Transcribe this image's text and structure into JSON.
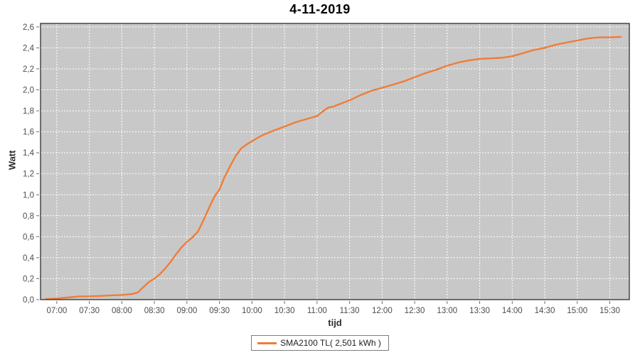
{
  "title": "4-11-2019",
  "axis": {
    "y_title": "Watt",
    "x_title": "tijd"
  },
  "legend": {
    "label": "SMA2100 TL( 2,501 kWh )",
    "line_color": "#EF7D38"
  },
  "colors": {
    "plot_background": "#C8C8C8",
    "gridline": "#FFFFFF",
    "series_line": "#EF7D38",
    "plot_border": "#2e2e2e",
    "tick": "#6b6b6b",
    "tick_label": "#4c4c4c",
    "page_background": "#FFFFFF"
  },
  "chart_data": {
    "type": "line",
    "title": "4-11-2019",
    "xlabel": "tijd",
    "ylabel": "Watt",
    "grid": true,
    "grid_style": "dashed-white",
    "legend_position": "bottom-center",
    "xlim_hours": [
      6.75,
      15.8
    ],
    "ylim": [
      0,
      2.633
    ],
    "x_ticks": [
      {
        "hour": 7.0,
        "label": "07:00"
      },
      {
        "hour": 7.5,
        "label": "07:30"
      },
      {
        "hour": 8.0,
        "label": "08:00"
      },
      {
        "hour": 8.5,
        "label": "08:30"
      },
      {
        "hour": 9.0,
        "label": "09:00"
      },
      {
        "hour": 9.5,
        "label": "09:30"
      },
      {
        "hour": 10.0,
        "label": "10:00"
      },
      {
        "hour": 10.5,
        "label": "10:30"
      },
      {
        "hour": 11.0,
        "label": "11:00"
      },
      {
        "hour": 11.5,
        "label": "11:30"
      },
      {
        "hour": 12.0,
        "label": "12:00"
      },
      {
        "hour": 12.5,
        "label": "12:30"
      },
      {
        "hour": 13.0,
        "label": "13:00"
      },
      {
        "hour": 13.5,
        "label": "13:30"
      },
      {
        "hour": 14.0,
        "label": "14:00"
      },
      {
        "hour": 14.5,
        "label": "14:30"
      },
      {
        "hour": 15.0,
        "label": "15:00"
      },
      {
        "hour": 15.5,
        "label": "15:30"
      }
    ],
    "y_ticks": [
      {
        "value": 0.0,
        "label": "0,0"
      },
      {
        "value": 0.2,
        "label": "0,2"
      },
      {
        "value": 0.4,
        "label": "0,4"
      },
      {
        "value": 0.6,
        "label": "0,6"
      },
      {
        "value": 0.8,
        "label": "0,8"
      },
      {
        "value": 1.0,
        "label": "1,0"
      },
      {
        "value": 1.2,
        "label": "1,2"
      },
      {
        "value": 1.4,
        "label": "1,4"
      },
      {
        "value": 1.6,
        "label": "1,6"
      },
      {
        "value": 1.8,
        "label": "1,8"
      },
      {
        "value": 2.0,
        "label": "2,0"
      },
      {
        "value": 2.2,
        "label": "2,2"
      },
      {
        "value": 2.4,
        "label": "2,4"
      },
      {
        "value": 2.6,
        "label": "2,6"
      }
    ],
    "series": [
      {
        "name": "SMA2100 TL( 2,501 kWh )",
        "color": "#EF7D38",
        "total_kwh_label": "2,501 kWh",
        "points": [
          [
            6.83,
            0.005
          ],
          [
            7.0,
            0.01
          ],
          [
            7.17,
            0.02
          ],
          [
            7.33,
            0.03
          ],
          [
            7.5,
            0.032
          ],
          [
            7.67,
            0.035
          ],
          [
            7.83,
            0.04
          ],
          [
            8.0,
            0.045
          ],
          [
            8.17,
            0.055
          ],
          [
            8.25,
            0.07
          ],
          [
            8.33,
            0.12
          ],
          [
            8.42,
            0.17
          ],
          [
            8.5,
            0.2
          ],
          [
            8.58,
            0.24
          ],
          [
            8.67,
            0.3
          ],
          [
            8.75,
            0.36
          ],
          [
            8.83,
            0.43
          ],
          [
            8.92,
            0.5
          ],
          [
            9.0,
            0.55
          ],
          [
            9.08,
            0.59
          ],
          [
            9.17,
            0.65
          ],
          [
            9.25,
            0.75
          ],
          [
            9.33,
            0.86
          ],
          [
            9.42,
            0.98
          ],
          [
            9.5,
            1.05
          ],
          [
            9.58,
            1.17
          ],
          [
            9.67,
            1.28
          ],
          [
            9.75,
            1.37
          ],
          [
            9.83,
            1.44
          ],
          [
            9.92,
            1.48
          ],
          [
            10.0,
            1.51
          ],
          [
            10.08,
            1.54
          ],
          [
            10.17,
            1.57
          ],
          [
            10.33,
            1.61
          ],
          [
            10.5,
            1.65
          ],
          [
            10.67,
            1.69
          ],
          [
            10.83,
            1.72
          ],
          [
            11.0,
            1.75
          ],
          [
            11.08,
            1.79
          ],
          [
            11.17,
            1.83
          ],
          [
            11.25,
            1.84
          ],
          [
            11.33,
            1.86
          ],
          [
            11.5,
            1.9
          ],
          [
            11.67,
            1.95
          ],
          [
            11.83,
            1.99
          ],
          [
            12.0,
            2.02
          ],
          [
            12.17,
            2.05
          ],
          [
            12.33,
            2.08
          ],
          [
            12.5,
            2.12
          ],
          [
            12.67,
            2.16
          ],
          [
            12.83,
            2.19
          ],
          [
            13.0,
            2.23
          ],
          [
            13.17,
            2.26
          ],
          [
            13.33,
            2.28
          ],
          [
            13.5,
            2.295
          ],
          [
            13.67,
            2.3
          ],
          [
            13.83,
            2.305
          ],
          [
            14.0,
            2.32
          ],
          [
            14.17,
            2.35
          ],
          [
            14.33,
            2.38
          ],
          [
            14.5,
            2.4
          ],
          [
            14.67,
            2.43
          ],
          [
            14.83,
            2.45
          ],
          [
            15.0,
            2.47
          ],
          [
            15.17,
            2.49
          ],
          [
            15.33,
            2.5
          ],
          [
            15.5,
            2.5
          ],
          [
            15.67,
            2.505
          ]
        ]
      }
    ]
  }
}
